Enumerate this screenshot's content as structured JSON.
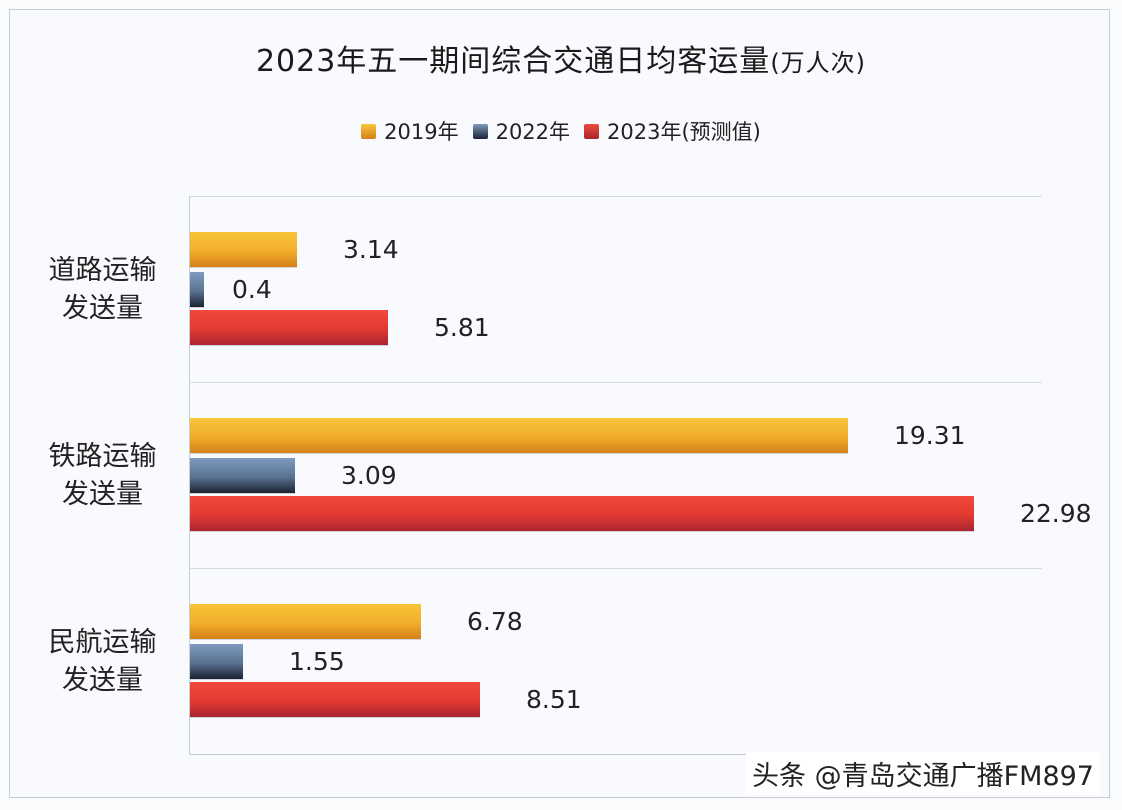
{
  "chart_data": {
    "type": "bar",
    "orientation": "horizontal",
    "title": "2023年五一期间综合交通日均客运量",
    "title_unit": "(万人次)",
    "categories": [
      "道路运输发送量",
      "铁路运输发送量",
      "民航运输发送量"
    ],
    "category_lines": [
      [
        "道路运输",
        "发送量"
      ],
      [
        "铁路运输",
        "发送量"
      ],
      [
        "民航运输",
        "发送量"
      ]
    ],
    "series": [
      {
        "name": "2019年",
        "color": "#f1ad2a",
        "values": [
          3.14,
          19.31,
          6.78
        ]
      },
      {
        "name": "2022年",
        "color": "#5a7190",
        "values": [
          0.4,
          3.09,
          1.55
        ]
      },
      {
        "name": "2023年(预测值)",
        "color": "#e23a33",
        "values": [
          5.81,
          22.98,
          8.51
        ]
      }
    ],
    "value_labels": [
      [
        "3.14",
        "19.31",
        "6.78"
      ],
      [
        "0.4",
        "3.09",
        "1.55"
      ],
      [
        "5.81",
        "22.98",
        "8.51"
      ]
    ],
    "xlabel": "",
    "ylabel": "",
    "xlim": [
      0,
      25
    ],
    "grid": "horizontal separators between categories",
    "legend_position": "top"
  },
  "watermark": "头条 @青岛交通广播FM897"
}
